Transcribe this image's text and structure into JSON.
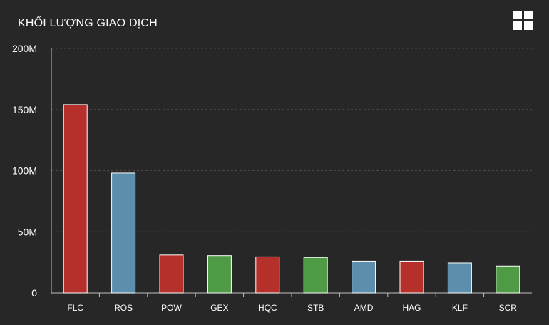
{
  "header": {
    "title": "KHỐI LƯỢNG GIAO DỊCH",
    "menu_icon": "grid-icon"
  },
  "colors": {
    "background": "#272727",
    "red": "#b5302a",
    "blue": "#5b8fad",
    "green": "#4e9a45",
    "grid": "#4a4a4a",
    "axis": "#bfbfbf"
  },
  "chart_data": {
    "type": "bar",
    "title": "KHỐI LƯỢNG GIAO DỊCH",
    "categories": [
      "FLC",
      "ROS",
      "POW",
      "GEX",
      "HQC",
      "STB",
      "AMD",
      "HAG",
      "KLF",
      "SCR"
    ],
    "values": [
      154000000,
      98000000,
      31000000,
      30500000,
      29500000,
      29000000,
      26000000,
      26000000,
      24500000,
      22000000
    ],
    "bar_colors": [
      "#b5302a",
      "#5b8fad",
      "#b5302a",
      "#4e9a45",
      "#b5302a",
      "#4e9a45",
      "#5b8fad",
      "#b5302a",
      "#5b8fad",
      "#4e9a45"
    ],
    "ylim": [
      0,
      200000000
    ],
    "yticks": [
      0,
      50000000,
      100000000,
      150000000,
      200000000
    ],
    "ytick_labels": [
      "0",
      "50M",
      "100M",
      "150M",
      "200M"
    ],
    "grid": true,
    "legend": "none"
  }
}
